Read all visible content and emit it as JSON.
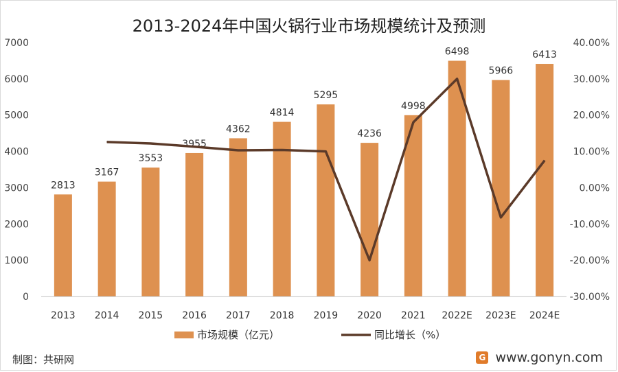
{
  "chart_data": {
    "type": "bar",
    "title": "2013-2024年中国火锅行业市场规模统计及预测",
    "categories": [
      "2013",
      "2014",
      "2015",
      "2016",
      "2017",
      "2018",
      "2019",
      "2020",
      "2021",
      "2022E",
      "2023E",
      "2024E"
    ],
    "series": [
      {
        "name": "市场规模（亿元）",
        "type": "bar",
        "axis": "left",
        "values": [
          2813,
          3167,
          3553,
          3955,
          4362,
          4814,
          5295,
          4236,
          4998,
          6498,
          5966,
          6413
        ]
      },
      {
        "name": "同比增长（%）",
        "type": "line",
        "axis": "right",
        "values": [
          null,
          12.6,
          12.2,
          11.3,
          10.3,
          10.4,
          10.0,
          -20.0,
          18.0,
          30.0,
          -8.2,
          7.5
        ]
      }
    ],
    "y_left": {
      "min": 0,
      "max": 7000,
      "step": 1000,
      "ticks": [
        "0",
        "1000",
        "2000",
        "3000",
        "4000",
        "5000",
        "6000",
        "7000"
      ]
    },
    "y_right": {
      "min": -30,
      "max": 40,
      "step": 10,
      "ticks": [
        "-30.00%",
        "-20.00%",
        "-10.00%",
        "0.00%",
        "10.00%",
        "20.00%",
        "30.00%",
        "40.00%"
      ]
    },
    "grid": false,
    "legend_position": "bottom",
    "colors": {
      "bar": "#de9150",
      "line": "#5b3a29"
    }
  },
  "footer": {
    "source": "制图：共研网",
    "website": "www.gonyn.com",
    "logo_glyph": "G"
  }
}
